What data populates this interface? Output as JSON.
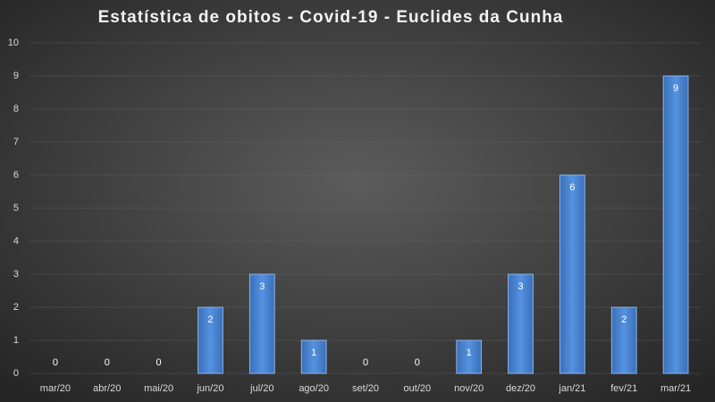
{
  "chart_data": {
    "type": "bar",
    "title": "Estatística de obitos - Covid-19 - Euclides da Cunha",
    "categories": [
      "mar/20",
      "abr/20",
      "mai/20",
      "jun/20",
      "jul/20",
      "ago/20",
      "set/20",
      "out/20",
      "nov/20",
      "dez/20",
      "jan/21",
      "fev/21",
      "mar/21"
    ],
    "values": [
      0,
      0,
      0,
      2,
      3,
      1,
      0,
      0,
      1,
      3,
      6,
      2,
      9
    ],
    "color": "#4a86d6",
    "ylim": [
      0,
      10
    ],
    "yticks": [
      0,
      1,
      2,
      3,
      4,
      5,
      6,
      7,
      8,
      9,
      10
    ],
    "grid": true
  }
}
